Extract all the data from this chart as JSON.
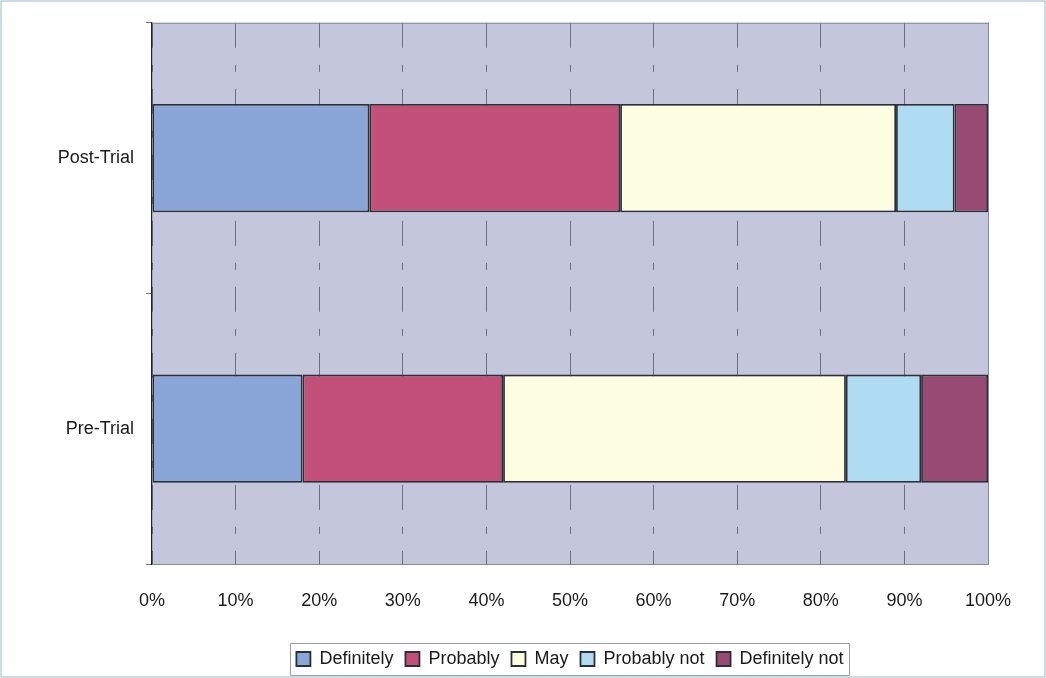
{
  "chart_data": {
    "type": "bar",
    "orientation": "horizontal",
    "stacked": true,
    "categories": [
      "Post-Trial",
      "Pre-Trial"
    ],
    "series": [
      {
        "name": "Definitely",
        "color": "#8aa6d9",
        "values": [
          26,
          18
        ]
      },
      {
        "name": "Probably",
        "color": "#c25079",
        "values": [
          30,
          24
        ]
      },
      {
        "name": "May",
        "color": "#fdfde2",
        "values": [
          33,
          41
        ]
      },
      {
        "name": "Probably not",
        "color": "#afdcf3",
        "values": [
          7,
          9
        ]
      },
      {
        "name": "Definitely not",
        "color": "#984a74",
        "values": [
          4,
          8
        ]
      }
    ],
    "xlim": [
      0,
      100
    ],
    "xticks": [
      {
        "value": 0,
        "label": "0%"
      },
      {
        "value": 10,
        "label": "10%"
      },
      {
        "value": 20,
        "label": "20%"
      },
      {
        "value": 30,
        "label": "30%"
      },
      {
        "value": 40,
        "label": "40%"
      },
      {
        "value": 50,
        "label": "50%"
      },
      {
        "value": 60,
        "label": "60%"
      },
      {
        "value": 70,
        "label": "70%"
      },
      {
        "value": 80,
        "label": "80%"
      },
      {
        "value": 90,
        "label": "90%"
      },
      {
        "value": 100,
        "label": "100%"
      }
    ],
    "grid": "x",
    "legend": "bottom"
  }
}
